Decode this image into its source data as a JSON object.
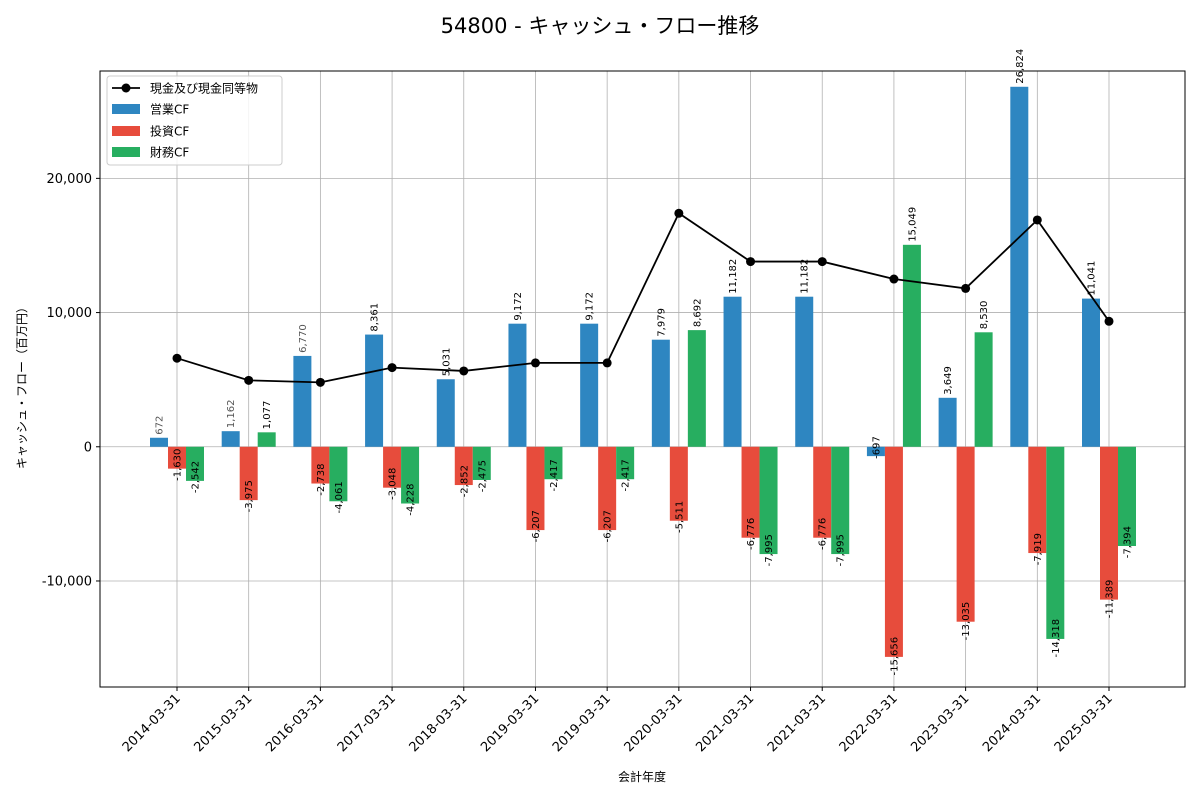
{
  "chart_data": {
    "type": "bar",
    "title": "54800 - キャッシュ・フロー推移",
    "xlabel": "会計年度",
    "ylabel": "キャッシュ・フロー（百万円）",
    "ylim": [
      -17900,
      28000
    ],
    "yticks": [
      -10000,
      0,
      10000,
      20000
    ],
    "ytick_labels": [
      "-10,000",
      "0",
      "10,000",
      "20,000"
    ],
    "grid": true,
    "legend_position": "top-left",
    "categories": [
      "2014-03-31",
      "2015-03-31",
      "2016-03-31",
      "2017-03-31",
      "2018-03-31",
      "2019-03-31",
      "2019-03-31",
      "2020-03-31",
      "2021-03-31",
      "2021-03-31",
      "2022-03-31",
      "2023-03-31",
      "2024-03-31",
      "2025-03-31"
    ],
    "series": [
      {
        "name": "営業CF",
        "kind": "bar",
        "color": "#2e86c1",
        "values": [
          672,
          1162,
          6770,
          8361,
          5031,
          9172,
          9172,
          7979,
          11182,
          11182,
          -697,
          3649,
          26824,
          11041
        ],
        "labels": [
          "672",
          "1,162",
          "6,770",
          "8,361",
          "5,031",
          "9,172",
          "9,172",
          "7,979",
          "11,182",
          "11,182",
          "-697",
          "3,649",
          "26,824",
          "11,041"
        ]
      },
      {
        "name": "投資CF",
        "kind": "bar",
        "color": "#e74c3c",
        "values": [
          -1630,
          -3975,
          -2738,
          -3048,
          -2852,
          -6207,
          -6207,
          -5511,
          -6776,
          -6776,
          -15656,
          -13035,
          -7919,
          -11389
        ],
        "labels": [
          "-1,630",
          "-3,975",
          "-2,738",
          "-3,048",
          "-2,852",
          "-6,207",
          "-6,207",
          "-5,511",
          "-6,776",
          "-6,776",
          "-15,656",
          "-13,035",
          "-7,919",
          "-11,389"
        ]
      },
      {
        "name": "財務CF",
        "kind": "bar",
        "color": "#27ae60",
        "values": [
          -2542,
          1077,
          -4061,
          -4228,
          -2475,
          -2417,
          -2417,
          8692,
          -7995,
          -7995,
          15049,
          8530,
          -14318,
          -7394
        ],
        "labels": [
          "-2,542",
          "1,077",
          "-4,061",
          "-4,228",
          "-2,475",
          "-2,417",
          "-2,417",
          "8,692",
          "-7,995",
          "-7,995",
          "15,049",
          "8,530",
          "-14,318",
          "-7,394"
        ]
      },
      {
        "name": "現金及び現金同等物",
        "kind": "line",
        "color": "#000000",
        "values": [
          6600,
          4950,
          4800,
          5900,
          5650,
          6250,
          6250,
          17400,
          13800,
          13800,
          12500,
          11800,
          16900,
          9350
        ]
      }
    ],
    "legend_order": [
      3,
      0,
      1,
      2
    ]
  }
}
